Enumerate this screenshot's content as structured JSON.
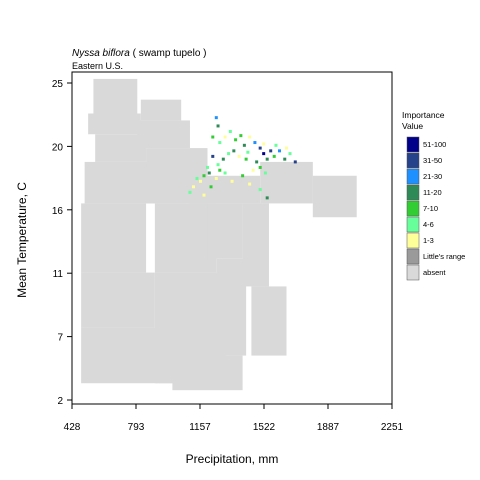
{
  "chart_data": {
    "type": "heatmap",
    "title_italic": "Nyssa biflora",
    "title_rest": " ( swamp tupelo )",
    "subtitle": "Eastern U.S.",
    "xlabel": "Precipitation, mm",
    "ylabel": "Mean Temperature, C",
    "x_ticks": [
      "428",
      "793",
      "1157",
      "1522",
      "1887",
      "2251"
    ],
    "y_ticks": [
      "2",
      "7",
      "11",
      "16",
      "20",
      "25"
    ],
    "xlim": [
      428,
      2251
    ],
    "ylim": [
      1.5,
      25.5
    ],
    "grid": false,
    "legend": {
      "position": "right",
      "title_line1": "Importance",
      "title_line2": "Value",
      "entries": [
        {
          "label": "51-100",
          "color": "#00008b"
        },
        {
          "label": "31-50",
          "color": "#26428b"
        },
        {
          "label": "21-30",
          "color": "#1e90ff"
        },
        {
          "label": "11-20",
          "color": "#2e8b57"
        },
        {
          "label": "7-10",
          "color": "#32cd32"
        },
        {
          "label": "4-6",
          "color": "#66ff99"
        },
        {
          "label": "1-3",
          "color": "#ffff99"
        },
        {
          "label": "Little's range",
          "color": "#9a9a9a"
        },
        {
          "label": "absent",
          "color": "#d9d9d9"
        }
      ]
    },
    "absent_color": "#d9d9d9",
    "absent_cells": [
      [
        550,
        22.5,
        800,
        25
      ],
      [
        520,
        21,
        820,
        22.5
      ],
      [
        560,
        19,
        850,
        21
      ],
      [
        500,
        16,
        900,
        19
      ],
      [
        480,
        11,
        850,
        16
      ],
      [
        480,
        7,
        900,
        11
      ],
      [
        480,
        3,
        1000,
        7
      ],
      [
        800,
        20,
        1100,
        22
      ],
      [
        820,
        22,
        1050,
        23.5
      ],
      [
        850,
        16,
        1200,
        20
      ],
      [
        900,
        11,
        1250,
        16
      ],
      [
        900,
        3,
        1300,
        11
      ],
      [
        1000,
        2.5,
        1400,
        5
      ],
      [
        1100,
        16,
        1500,
        18
      ],
      [
        1200,
        12,
        1400,
        16
      ],
      [
        1250,
        5,
        1420,
        12
      ],
      [
        1500,
        16,
        1800,
        19
      ],
      [
        1800,
        15,
        2050,
        18
      ],
      [
        1450,
        5,
        1650,
        10
      ],
      [
        1400,
        10,
        1550,
        16
      ]
    ],
    "importance_cells": [
      {
        "x": 1250,
        "y": 22.2,
        "v": 21
      },
      {
        "x": 1260,
        "y": 21.6,
        "v": 11
      },
      {
        "x": 1230,
        "y": 20.8,
        "v": 8
      },
      {
        "x": 1270,
        "y": 20.4,
        "v": 5
      },
      {
        "x": 1330,
        "y": 21.2,
        "v": 4
      },
      {
        "x": 1360,
        "y": 20.6,
        "v": 9
      },
      {
        "x": 1410,
        "y": 20.2,
        "v": 12
      },
      {
        "x": 1440,
        "y": 20.8,
        "v": 2
      },
      {
        "x": 1470,
        "y": 20.4,
        "v": 25
      },
      {
        "x": 1500,
        "y": 20.0,
        "v": 35
      },
      {
        "x": 1520,
        "y": 19.6,
        "v": 55
      },
      {
        "x": 1540,
        "y": 19.2,
        "v": 15
      },
      {
        "x": 1560,
        "y": 19.8,
        "v": 45
      },
      {
        "x": 1580,
        "y": 19.4,
        "v": 8
      },
      {
        "x": 1610,
        "y": 19.8,
        "v": 25
      },
      {
        "x": 1640,
        "y": 19.2,
        "v": 12
      },
      {
        "x": 1670,
        "y": 19.6,
        "v": 5
      },
      {
        "x": 1700,
        "y": 19.0,
        "v": 40
      },
      {
        "x": 1480,
        "y": 19.0,
        "v": 11
      },
      {
        "x": 1500,
        "y": 18.6,
        "v": 8
      },
      {
        "x": 1530,
        "y": 18.2,
        "v": 5
      },
      {
        "x": 1460,
        "y": 18.4,
        "v": 2
      },
      {
        "x": 1420,
        "y": 19.2,
        "v": 9
      },
      {
        "x": 1380,
        "y": 19.4,
        "v": 3
      },
      {
        "x": 1350,
        "y": 19.8,
        "v": 12
      },
      {
        "x": 1320,
        "y": 19.6,
        "v": 5
      },
      {
        "x": 1290,
        "y": 19.2,
        "v": 11
      },
      {
        "x": 1260,
        "y": 18.8,
        "v": 4
      },
      {
        "x": 1230,
        "y": 19.4,
        "v": 35
      },
      {
        "x": 1200,
        "y": 18.6,
        "v": 5
      },
      {
        "x": 1180,
        "y": 18.0,
        "v": 8
      },
      {
        "x": 1160,
        "y": 17.6,
        "v": 2
      },
      {
        "x": 1140,
        "y": 17.8,
        "v": 5
      },
      {
        "x": 1120,
        "y": 17.2,
        "v": 3
      },
      {
        "x": 1100,
        "y": 16.8,
        "v": 5
      },
      {
        "x": 1180,
        "y": 16.6,
        "v": 2
      },
      {
        "x": 1220,
        "y": 17.2,
        "v": 9
      },
      {
        "x": 1250,
        "y": 17.8,
        "v": 3
      },
      {
        "x": 1300,
        "y": 18.2,
        "v": 5
      },
      {
        "x": 1340,
        "y": 17.6,
        "v": 2
      },
      {
        "x": 1400,
        "y": 18.0,
        "v": 8
      },
      {
        "x": 1440,
        "y": 17.4,
        "v": 3
      },
      {
        "x": 1500,
        "y": 17.0,
        "v": 5
      },
      {
        "x": 1540,
        "y": 16.4,
        "v": 12
      },
      {
        "x": 1300,
        "y": 20.8,
        "v": 3
      },
      {
        "x": 1390,
        "y": 20.9,
        "v": 8
      },
      {
        "x": 1430,
        "y": 19.7,
        "v": 5
      },
      {
        "x": 1520,
        "y": 20.3,
        "v": 2
      },
      {
        "x": 1590,
        "y": 20.2,
        "v": 5
      },
      {
        "x": 1650,
        "y": 20.0,
        "v": 3
      },
      {
        "x": 1210,
        "y": 18.2,
        "v": 11
      },
      {
        "x": 1270,
        "y": 18.4,
        "v": 8
      }
    ]
  }
}
